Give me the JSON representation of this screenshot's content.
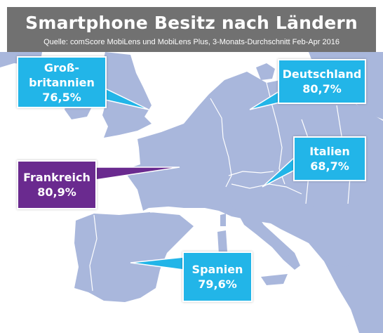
{
  "chart_data": {
    "type": "map",
    "title": "Smartphone Besitz nach Ländern",
    "subtitle": "Quelle: comScore MobiLens und MobiLens Plus, 3-Monats-Durchschnitt Feb-Apr 2016",
    "regions": [
      {
        "label_lines": [
          "Groß-",
          "britannien"
        ],
        "value_text": "76,5%",
        "value": 76.5
      },
      {
        "label_lines": [
          "Deutschland"
        ],
        "value_text": "80,7%",
        "value": 80.7
      },
      {
        "label_lines": [
          "Italien"
        ],
        "value_text": "68,7%",
        "value": 68.7
      },
      {
        "label_lines": [
          "Frankreich"
        ],
        "value_text": "80,9%",
        "value": 80.9
      },
      {
        "label_lines": [
          "Spanien"
        ],
        "value_text": "79,6%",
        "value": 79.6
      }
    ]
  },
  "colors": {
    "sea": "#ffffff",
    "land": "#a9b7dc",
    "border": "#ffffff",
    "callout_cyan": "#22b5e8",
    "callout_purple": "#6a2a8f",
    "header": "#6d6d6d"
  }
}
